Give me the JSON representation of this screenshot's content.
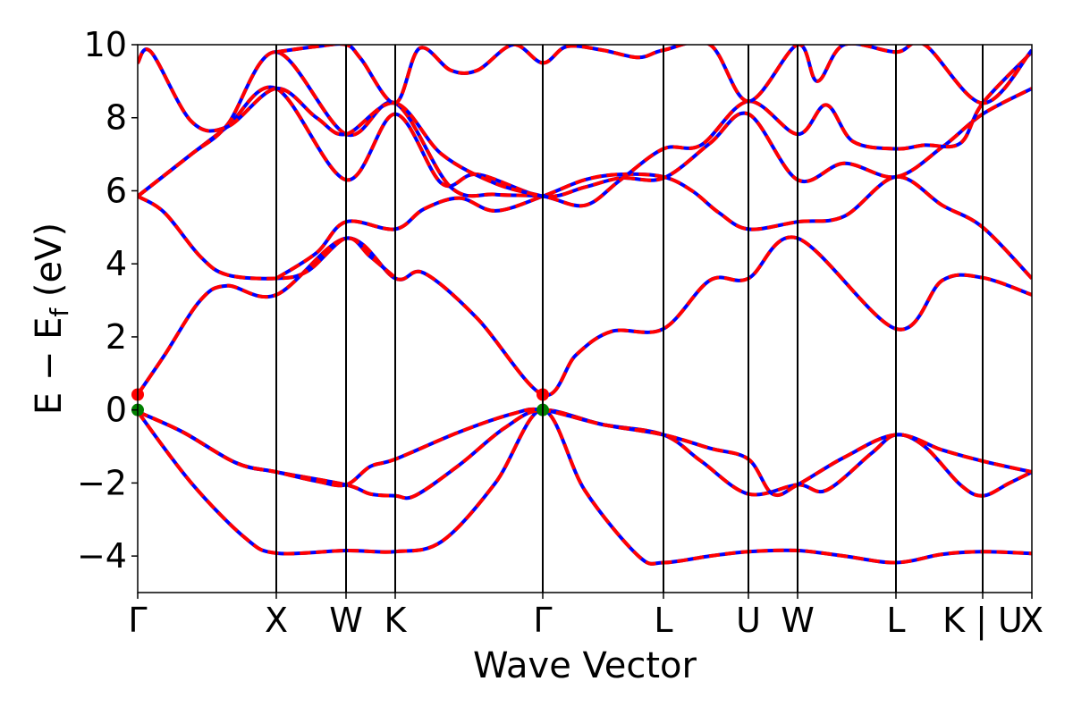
{
  "chart_data": {
    "type": "line",
    "title": "",
    "xlabel": "Wave Vector",
    "ylabel": "E − E_f (eV)",
    "ylabel_parts": {
      "main": "E − E",
      "sub": "f",
      "unit": "(eV)"
    },
    "ylim": [
      -5,
      10
    ],
    "yticks": [
      -4,
      -2,
      0,
      2,
      4,
      6,
      8,
      10
    ],
    "ytick_labels": [
      "−4",
      "−2",
      "0",
      "2",
      "4",
      "6",
      "8",
      "10"
    ],
    "xlim": [
      0,
      1000
    ],
    "kpoints": [
      {
        "label": "Γ",
        "x": 0
      },
      {
        "label": "X",
        "x": 155
      },
      {
        "label": "W",
        "x": 233
      },
      {
        "label": "K",
        "x": 288
      },
      {
        "label": "Γ",
        "x": 453
      },
      {
        "label": "L",
        "x": 588
      },
      {
        "label": "U",
        "x": 683
      },
      {
        "label": "W",
        "x": 738
      },
      {
        "label": "L",
        "x": 848
      },
      {
        "label": "K | U",
        "x": 945
      },
      {
        "label": "X",
        "x": 1000
      }
    ],
    "grid": false,
    "colors": {
      "solid": "#0000ff",
      "dashed": "#ff0000",
      "cbm": "#ff0000",
      "vbm": "#008000"
    },
    "band_edge_points": [
      {
        "name": "CBM",
        "x": 0,
        "y": 0.42,
        "color": "#ff0000"
      },
      {
        "name": "CBM",
        "x": 453,
        "y": 0.42,
        "color": "#ff0000"
      },
      {
        "name": "VBM",
        "x": 0,
        "y": 0.0,
        "color": "#008000"
      },
      {
        "name": "VBM",
        "x": 453,
        "y": 0.0,
        "color": "#008000"
      }
    ],
    "series": [
      {
        "points": [
          [
            0,
            -0.05
          ],
          [
            60,
            -2.0
          ],
          [
            120,
            -3.5
          ],
          [
            155,
            -3.92
          ],
          [
            233,
            -3.85
          ],
          [
            288,
            -3.88
          ],
          [
            340,
            -3.6
          ],
          [
            400,
            -2.0
          ],
          [
            453,
            0.0
          ],
          [
            500,
            -2.2
          ],
          [
            560,
            -4.0
          ],
          [
            588,
            -4.18
          ],
          [
            640,
            -4.0
          ],
          [
            683,
            -3.88
          ],
          [
            738,
            -3.85
          ],
          [
            790,
            -4.0
          ],
          [
            848,
            -4.18
          ],
          [
            900,
            -3.95
          ],
          [
            945,
            -3.88
          ],
          [
            1000,
            -3.93
          ]
        ]
      },
      {
        "points": [
          [
            0,
            -0.05
          ],
          [
            50,
            -0.6
          ],
          [
            110,
            -1.45
          ],
          [
            155,
            -1.7
          ],
          [
            233,
            -2.05
          ],
          [
            260,
            -2.3
          ],
          [
            288,
            -2.35
          ],
          [
            310,
            -2.35
          ],
          [
            360,
            -1.5
          ],
          [
            410,
            -0.5
          ],
          [
            453,
            0.0
          ],
          [
            520,
            -0.4
          ],
          [
            588,
            -0.68
          ],
          [
            630,
            -1.4
          ],
          [
            683,
            -2.3
          ],
          [
            738,
            -2.05
          ],
          [
            770,
            -2.2
          ],
          [
            820,
            -1.2
          ],
          [
            848,
            -0.68
          ],
          [
            880,
            -1.0
          ],
          [
            920,
            -2.05
          ],
          [
            945,
            -2.35
          ],
          [
            975,
            -2.0
          ],
          [
            1000,
            -1.7
          ]
        ]
      },
      {
        "points": [
          [
            0,
            -0.05
          ],
          [
            50,
            -0.6
          ],
          [
            110,
            -1.45
          ],
          [
            155,
            -1.7
          ],
          [
            200,
            -1.95
          ],
          [
            233,
            -2.05
          ],
          [
            260,
            -1.55
          ],
          [
            288,
            -1.35
          ],
          [
            360,
            -0.6
          ],
          [
            420,
            -0.1
          ],
          [
            453,
            0.0
          ],
          [
            520,
            -0.4
          ],
          [
            588,
            -0.68
          ],
          [
            640,
            -1.05
          ],
          [
            683,
            -1.35
          ],
          [
            710,
            -2.3
          ],
          [
            738,
            -2.05
          ],
          [
            790,
            -1.3
          ],
          [
            848,
            -0.68
          ],
          [
            900,
            -1.1
          ],
          [
            945,
            -1.4
          ],
          [
            1000,
            -1.7
          ]
        ]
      },
      {
        "points": [
          [
            0,
            0.42
          ],
          [
            30,
            1.5
          ],
          [
            70,
            3.0
          ],
          [
            100,
            3.4
          ],
          [
            155,
            3.15
          ],
          [
            233,
            4.7
          ],
          [
            288,
            3.6
          ],
          [
            320,
            3.75
          ],
          [
            380,
            2.5
          ],
          [
            453,
            0.42
          ],
          [
            490,
            1.5
          ],
          [
            530,
            2.15
          ],
          [
            588,
            2.22
          ],
          [
            640,
            3.55
          ],
          [
            683,
            3.6
          ],
          [
            738,
            4.7
          ],
          [
            848,
            2.22
          ],
          [
            900,
            3.55
          ],
          [
            945,
            3.62
          ],
          [
            1000,
            3.15
          ]
        ]
      },
      {
        "points": [
          [
            0,
            5.85
          ],
          [
            30,
            5.4
          ],
          [
            70,
            4.2
          ],
          [
            100,
            3.7
          ],
          [
            155,
            3.6
          ],
          [
            190,
            3.8
          ],
          [
            233,
            4.7
          ],
          [
            260,
            4.2
          ],
          [
            288,
            3.62
          ]
        ]
      },
      {
        "points": [
          [
            155,
            3.6
          ],
          [
            200,
            4.3
          ],
          [
            233,
            5.15
          ],
          [
            288,
            4.95
          ],
          [
            320,
            5.5
          ],
          [
            360,
            5.8
          ],
          [
            400,
            5.45
          ],
          [
            453,
            5.85
          ],
          [
            500,
            6.3
          ],
          [
            540,
            6.45
          ],
          [
            588,
            6.38
          ],
          [
            620,
            6.0
          ],
          [
            650,
            5.4
          ],
          [
            683,
            4.95
          ],
          [
            738,
            5.15
          ],
          [
            790,
            5.3
          ],
          [
            848,
            6.38
          ],
          [
            900,
            5.6
          ],
          [
            945,
            5.0
          ],
          [
            1000,
            3.6
          ]
        ]
      },
      {
        "points": [
          [
            0,
            5.85
          ],
          [
            60,
            7.0
          ],
          [
            100,
            7.75
          ],
          [
            155,
            8.8
          ],
          [
            233,
            6.3
          ],
          [
            288,
            8.1
          ],
          [
            340,
            6.2
          ],
          [
            380,
            6.45
          ],
          [
            453,
            5.85
          ],
          [
            500,
            6.1
          ],
          [
            540,
            6.35
          ],
          [
            588,
            6.35
          ],
          [
            640,
            7.3
          ],
          [
            683,
            8.1
          ],
          [
            738,
            6.3
          ],
          [
            790,
            6.75
          ],
          [
            848,
            6.38
          ],
          [
            900,
            7.2
          ],
          [
            945,
            8.1
          ],
          [
            1000,
            8.8
          ]
        ]
      },
      {
        "points": [
          [
            0,
            5.85
          ],
          [
            60,
            7.0
          ],
          [
            100,
            7.8
          ],
          [
            155,
            9.8
          ],
          [
            233,
            7.55
          ],
          [
            288,
            8.4
          ],
          [
            350,
            6.1
          ],
          [
            400,
            5.9
          ],
          [
            453,
            5.85
          ],
          [
            500,
            5.6
          ],
          [
            540,
            6.3
          ],
          [
            588,
            7.15
          ],
          [
            630,
            7.25
          ],
          [
            683,
            8.45
          ],
          [
            738,
            7.55
          ],
          [
            770,
            8.35
          ],
          [
            800,
            7.35
          ],
          [
            848,
            7.15
          ],
          [
            880,
            7.25
          ],
          [
            920,
            7.3
          ],
          [
            945,
            8.4
          ],
          [
            1000,
            9.8
          ]
        ]
      },
      {
        "points": [
          [
            0,
            9.5
          ],
          [
            15,
            9.8
          ],
          [
            60,
            7.9
          ],
          [
            100,
            7.75
          ],
          [
            155,
            8.8
          ],
          [
            200,
            8.0
          ],
          [
            233,
            7.55
          ],
          [
            288,
            8.4
          ],
          [
            340,
            7.0
          ],
          [
            400,
            6.2
          ],
          [
            453,
            5.85
          ]
        ]
      },
      {
        "points": [
          [
            155,
            9.8
          ],
          [
            200,
            9.95
          ],
          [
            233,
            10.0
          ],
          [
            250,
            9.6
          ],
          [
            288,
            8.4
          ],
          [
            315,
            9.9
          ],
          [
            350,
            9.3
          ],
          [
            380,
            9.3
          ],
          [
            420,
            10.0
          ],
          [
            453,
            9.5
          ],
          [
            480,
            9.95
          ],
          [
            520,
            9.85
          ],
          [
            560,
            9.65
          ],
          [
            588,
            9.85
          ],
          [
            640,
            10.0
          ],
          [
            683,
            8.45
          ],
          [
            738,
            10.0
          ],
          [
            760,
            9.0
          ],
          [
            790,
            10.0
          ],
          [
            848,
            9.8
          ],
          [
            880,
            10.0
          ],
          [
            945,
            8.4
          ],
          [
            1000,
            9.85
          ]
        ]
      }
    ]
  }
}
